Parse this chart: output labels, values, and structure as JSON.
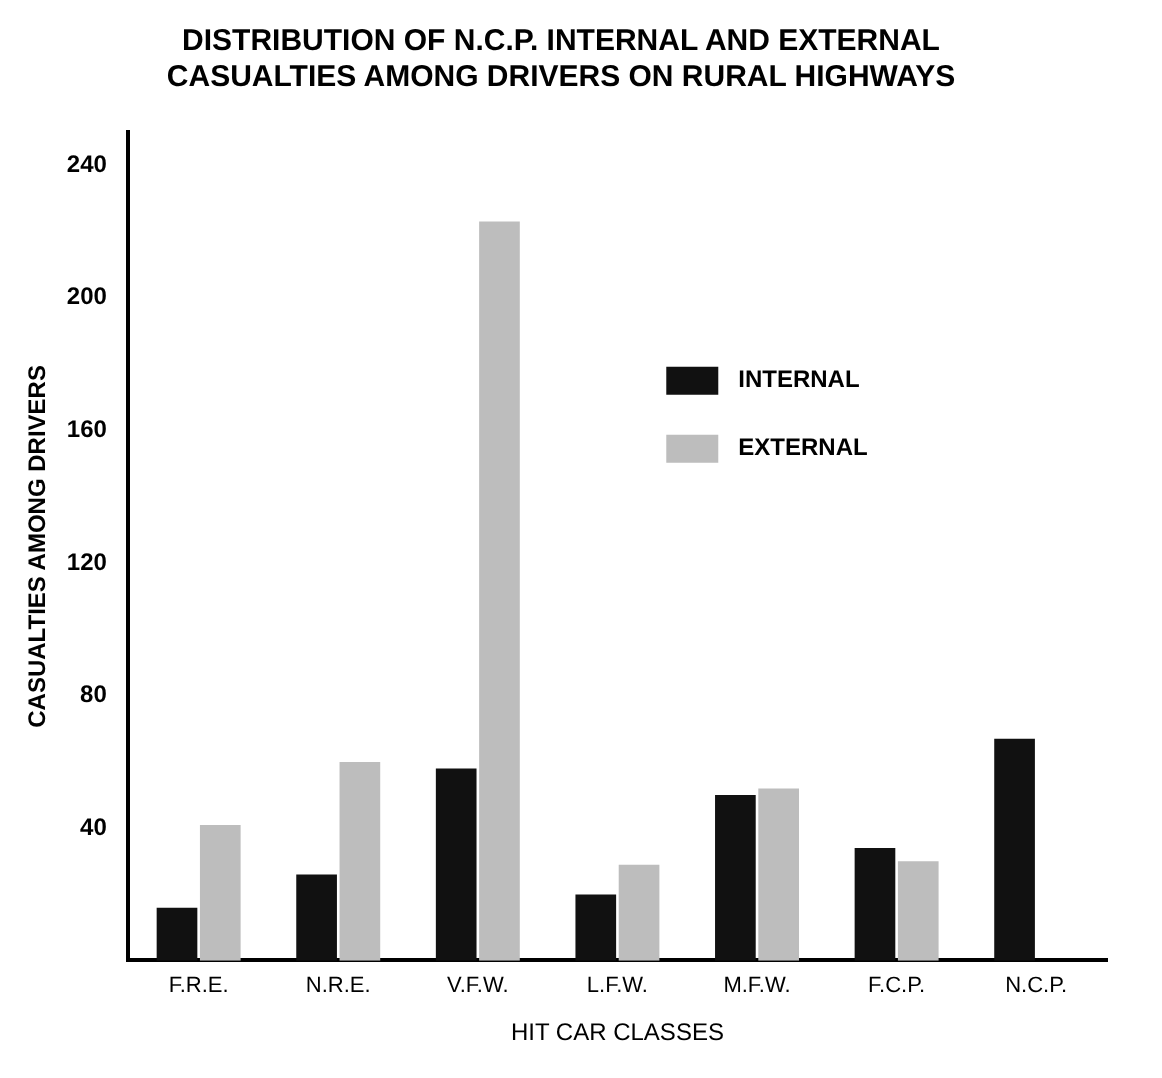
{
  "chart_data": {
    "type": "bar",
    "title": "DISTRIBUTION OF N.C.P. INTERNAL AND EXTERNAL CASUALTIES AMONG DRIVERS ON RURAL HIGHWAYS",
    "xlabel": "HIT CAR CLASSES",
    "ylabel": "CASUALTIES AMONG DRIVERS",
    "categories": [
      "F.R.E.",
      "N.R.E.",
      "V.F.W.",
      "L.F.W.",
      "M.F.W.",
      "F.C.P.",
      "N.C.P."
    ],
    "series": [
      {
        "name": "INTERNAL",
        "color": "#111111",
        "values": [
          16,
          26,
          58,
          20,
          50,
          34,
          67
        ]
      },
      {
        "name": "EXTERNAL",
        "color": "#bdbdbd",
        "values": [
          41,
          60,
          223,
          29,
          52,
          30,
          null
        ]
      }
    ],
    "ylim": [
      0,
      250
    ],
    "yticks": [
      40,
      80,
      120,
      160,
      200,
      240
    ],
    "grid": false,
    "legend": "right"
  }
}
